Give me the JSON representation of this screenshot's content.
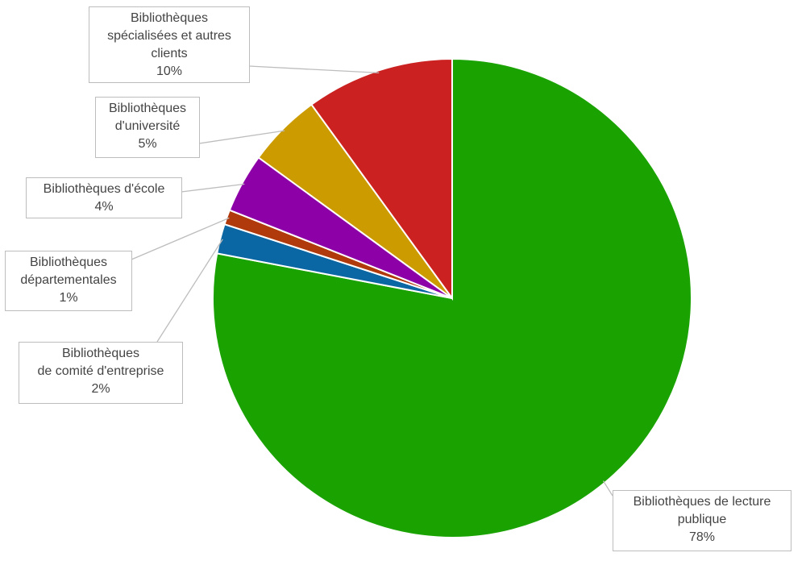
{
  "chart_data": {
    "type": "pie",
    "categories": [
      "Bibliothèques de lecture\npublique",
      "Bibliothèques\nde comité d'entreprise",
      "Bibliothèques\ndépartementales",
      "Bibliothèques d'école",
      "Bibliothèques\nd'université",
      "Bibliothèques\nspécialisées et autres\nclients"
    ],
    "values": [
      78,
      2,
      1,
      4,
      5,
      10
    ],
    "value_labels": [
      "78%",
      "2%",
      "1%",
      "4%",
      "5%",
      "10%"
    ],
    "colors": [
      "#1aa300",
      "#0b67a3",
      "#b03a0b",
      "#8d00a8",
      "#cc9b00",
      "#cb2121"
    ]
  }
}
